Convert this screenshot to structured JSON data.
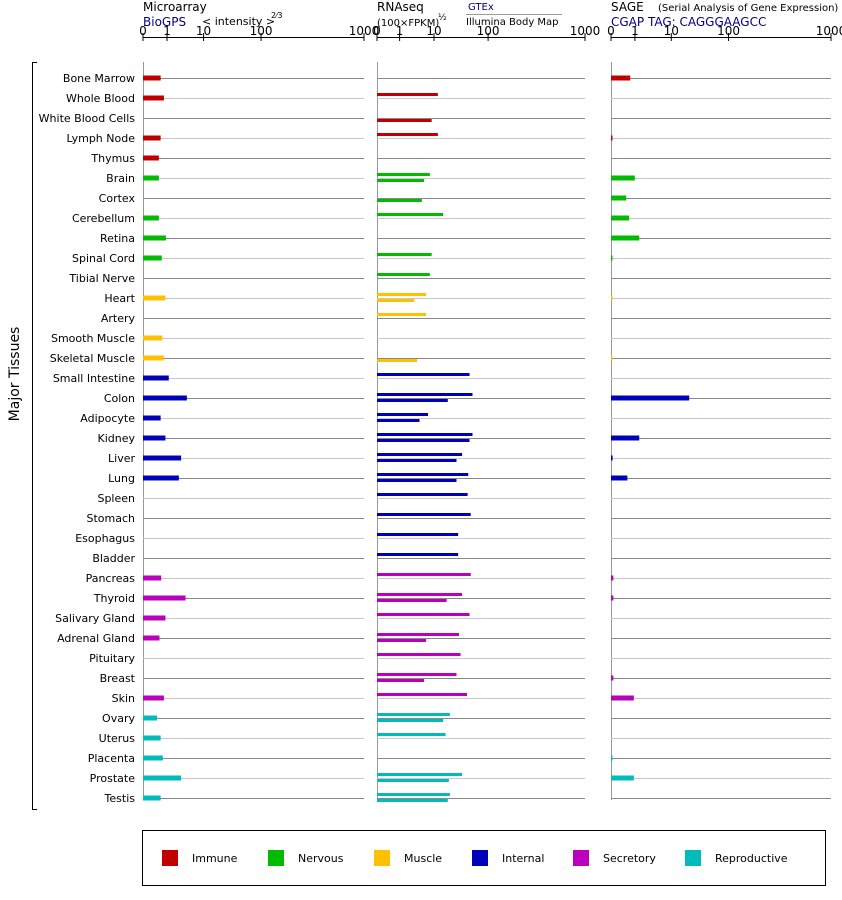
{
  "chart_data": {
    "type": "bar",
    "ylabel": "Major Tissues",
    "x_scale": "power-transformed (log-like) axis",
    "x_ticks": [
      "0",
      "1",
      "10",
      "100",
      "1000"
    ],
    "tissues": [
      "Bone Marrow",
      "Whole Blood",
      "White Blood Cells",
      "Lymph Node",
      "Thymus",
      "Brain",
      "Cortex",
      "Cerebellum",
      "Retina",
      "Spinal Cord",
      "Tibial Nerve",
      "Heart",
      "Artery",
      "Smooth Muscle",
      "Skeletal Muscle",
      "Small Intestine",
      "Colon",
      "Adipocyte",
      "Kidney",
      "Liver",
      "Lung",
      "Spleen",
      "Stomach",
      "Esophagus",
      "Bladder",
      "Pancreas",
      "Thyroid",
      "Salivary Gland",
      "Adrenal Gland",
      "Pituitary",
      "Breast",
      "Skin",
      "Ovary",
      "Uterus",
      "Placenta",
      "Prostate",
      "Testis"
    ],
    "tissue_groups": [
      "immune",
      "immune",
      "immune",
      "immune",
      "immune",
      "nervous",
      "nervous",
      "nervous",
      "nervous",
      "nervous",
      "nervous",
      "muscle",
      "muscle",
      "muscle",
      "muscle",
      "internal",
      "internal",
      "internal",
      "internal",
      "internal",
      "internal",
      "internal",
      "internal",
      "internal",
      "internal",
      "secretory",
      "secretory",
      "secretory",
      "secretory",
      "secretory",
      "secretory",
      "secretory",
      "reproductive",
      "reproductive",
      "reproductive",
      "reproductive",
      "reproductive"
    ],
    "panels": [
      {
        "id": "microarray",
        "title": "Microarray",
        "subtitle_link": "BioGPS",
        "subtitle_text": "< intensity >",
        "subtitle_exponent": "2⁄3",
        "values": [
          2.6,
          3.2,
          null,
          2.6,
          2.3,
          2.3,
          null,
          2.3,
          3.6,
          2.8,
          null,
          3.5,
          null,
          2.9,
          3.2,
          4.2,
          9.5,
          2.6,
          3.5,
          7.5,
          6.8,
          null,
          null,
          null,
          null,
          2.7,
          9.0,
          3.5,
          2.4,
          null,
          null,
          3.2,
          2.0,
          2.6,
          3.0,
          7.5,
          2.6
        ]
      },
      {
        "id": "rnaseq",
        "title": "RNAseq",
        "subtitle_text": "(100×FPKM)",
        "subtitle_exponent": "½",
        "legend_top": "GTEx",
        "legend_bottom": "Illumina Body Map",
        "values_gtex": [
          null,
          20,
          null,
          20,
          null,
          15,
          null,
          24,
          null,
          16,
          15,
          13,
          13,
          null,
          null,
          55,
          60,
          14,
          60,
          44,
          53,
          52,
          57,
          39,
          39,
          57,
          44,
          55,
          40,
          42,
          37,
          51,
          30,
          26,
          null,
          44,
          30
        ],
        "values_ibm": [
          null,
          null,
          16,
          null,
          null,
          12,
          11,
          null,
          null,
          null,
          null,
          8,
          null,
          null,
          9,
          null,
          28,
          10,
          55,
          37,
          37,
          null,
          null,
          null,
          null,
          null,
          27,
          null,
          13,
          null,
          12,
          null,
          24,
          null,
          null,
          29,
          28
        ]
      },
      {
        "id": "sage",
        "title": "SAGE",
        "subtitle_note": "(Serial Analysis of Gene Expression)",
        "subtitle_link": "CGAP TAG: CAGGGAAGCC",
        "values": [
          2.9,
          null,
          null,
          0.2,
          null,
          3.8,
          2.2,
          2.7,
          4.8,
          0.25,
          null,
          0.05,
          null,
          null,
          0.05,
          null,
          31,
          null,
          4.8,
          0.3,
          2.4,
          null,
          null,
          null,
          null,
          0.4,
          0.4,
          null,
          null,
          null,
          0.4,
          3.6,
          null,
          null,
          0.25,
          3.6,
          null
        ]
      }
    ],
    "legend": [
      {
        "key": "immune",
        "label": "Immune",
        "color": "#c00000"
      },
      {
        "key": "nervous",
        "label": "Nervous",
        "color": "#00bb00"
      },
      {
        "key": "muscle",
        "label": "Muscle",
        "color": "#ffc000"
      },
      {
        "key": "internal",
        "label": "Internal",
        "color": "#0000bb"
      },
      {
        "key": "secretory",
        "label": "Secretory",
        "color": "#bb00bb"
      },
      {
        "key": "reproductive",
        "label": "Reproductive",
        "color": "#00bbbb"
      }
    ]
  }
}
